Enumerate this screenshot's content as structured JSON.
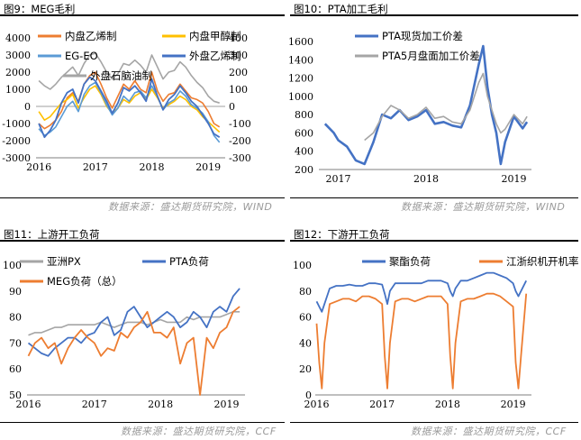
{
  "panels": [
    {
      "title": "图9：MEG毛利"
    },
    {
      "title": "图10：PTA加工毛利"
    },
    {
      "title": "图11：上游开工负荷"
    },
    {
      "title": "图12：下游开工负荷"
    }
  ],
  "source_top": "数据来源：盛达期货研究院，WIND",
  "source_bottom": "数据来源：盛达期货研究院，CCF",
  "chart_data": [
    {
      "type": "line",
      "ylim_left": [
        -3000,
        4000
      ],
      "ylim_right": [
        -300,
        400
      ],
      "yticks_left": [
        "4000",
        "3000",
        "2000",
        "1000",
        "0",
        "-1000",
        "-2000",
        "-3000"
      ],
      "yticks_right": [
        "400",
        "300",
        "200",
        "100",
        "0",
        "-100",
        "-200",
        "-300"
      ],
      "xticks": [
        "2016",
        "2017",
        "2018",
        "2019"
      ],
      "legend": [
        "内盘乙烯制",
        "内盘甲醇制",
        "EG-EO",
        "外盘乙烯制",
        "外盘石脑油制"
      ],
      "colors": {
        "内盘乙烯制": "#ed7d31",
        "内盘甲醇制": "#ffc000",
        "EG-EO": "#5b9bd5",
        "外盘乙烯制": "#4472c4",
        "外盘石脑油制": "#a5a5a5"
      },
      "x": [
        2016.0,
        2016.1,
        2016.2,
        2016.3,
        2016.4,
        2016.5,
        2016.6,
        2016.7,
        2016.8,
        2016.9,
        2017.0,
        2017.1,
        2017.2,
        2017.3,
        2017.4,
        2017.5,
        2017.6,
        2017.7,
        2017.8,
        2017.9,
        2018.0,
        2018.1,
        2018.2,
        2018.3,
        2018.4,
        2018.5,
        2018.6,
        2018.7,
        2018.8,
        2018.9,
        2019.0,
        2019.1,
        2019.2
      ],
      "series": [
        {
          "name": "内盘乙烯制",
          "axis": "left",
          "values": [
            -1000,
            -1300,
            -1100,
            -800,
            -300,
            500,
            800,
            300,
            1300,
            1800,
            2000,
            1300,
            500,
            -100,
            600,
            1300,
            1000,
            1500,
            1000,
            800,
            2000,
            900,
            300,
            700,
            800,
            1300,
            900,
            500,
            400,
            200,
            -300,
            -1000,
            -1200
          ]
        },
        {
          "name": "内盘甲醇制",
          "axis": "left",
          "values": [
            -300,
            -800,
            -600,
            -200,
            200,
            400,
            700,
            -100,
            500,
            1000,
            1200,
            700,
            0,
            -400,
            -100,
            400,
            200,
            600,
            800,
            400,
            1000,
            500,
            -100,
            100,
            300,
            600,
            400,
            0,
            -200,
            -600,
            -900,
            -1200,
            -1500
          ]
        },
        {
          "name": "EG-EO",
          "axis": "left",
          "values": [
            -1300,
            -1700,
            -1500,
            -1200,
            -600,
            0,
            300,
            -300,
            700,
            1200,
            1400,
            800,
            100,
            -500,
            -100,
            600,
            300,
            800,
            900,
            500,
            1200,
            600,
            -200,
            200,
            400,
            900,
            600,
            100,
            -100,
            -400,
            -900,
            -1700,
            -2100
          ]
        },
        {
          "name": "外盘乙烯制",
          "axis": "right",
          "values": [
            -100,
            -180,
            -140,
            -80,
            20,
            80,
            100,
            20,
            130,
            170,
            150,
            90,
            30,
            -40,
            20,
            110,
            90,
            120,
            80,
            30,
            160,
            60,
            -20,
            40,
            70,
            120,
            80,
            30,
            0,
            -50,
            -100,
            -160,
            -180
          ]
        },
        {
          "name": "外盘石脑油制",
          "axis": "right",
          "values": [
            150,
            120,
            100,
            130,
            170,
            200,
            230,
            180,
            250,
            300,
            310,
            260,
            200,
            160,
            190,
            250,
            240,
            270,
            240,
            200,
            300,
            230,
            160,
            200,
            210,
            260,
            230,
            180,
            140,
            110,
            60,
            30,
            20
          ]
        }
      ]
    },
    {
      "type": "line",
      "ylim": [
        200,
        1600
      ],
      "yticks": [
        "1600",
        "1400",
        "1200",
        "1000",
        "800",
        "600",
        "400",
        "200"
      ],
      "xticks": [
        "2017",
        "2018",
        "2019"
      ],
      "legend": [
        "PTA现货加工价差",
        "PTA5月盘面加工价差"
      ],
      "colors": {
        "PTA现货加工价差": "#4472c4",
        "PTA5月盘面加工价差": "#a5a5a5"
      },
      "x": [
        2016.85,
        2016.95,
        2017.0,
        2017.1,
        2017.2,
        2017.3,
        2017.4,
        2017.5,
        2017.6,
        2017.7,
        2017.8,
        2017.9,
        2018.0,
        2018.1,
        2018.2,
        2018.3,
        2018.4,
        2018.5,
        2018.6,
        2018.65,
        2018.7,
        2018.75,
        2018.8,
        2018.85,
        2018.9,
        2019.0,
        2019.1,
        2019.15
      ],
      "series": [
        {
          "name": "PTA现货加工价差",
          "values": [
            700,
            600,
            520,
            450,
            300,
            260,
            500,
            800,
            760,
            850,
            740,
            780,
            850,
            700,
            720,
            680,
            660,
            900,
            1350,
            1550,
            1100,
            800,
            600,
            260,
            500,
            780,
            650,
            720
          ]
        },
        {
          "name": "PTA5月盘面加工价差",
          "values": [
            null,
            null,
            null,
            null,
            null,
            520,
            600,
            780,
            900,
            850,
            760,
            800,
            880,
            760,
            780,
            720,
            700,
            850,
            1150,
            1250,
            1000,
            850,
            700,
            600,
            640,
            800,
            700,
            780
          ]
        }
      ]
    },
    {
      "type": "line",
      "ylim": [
        50,
        100
      ],
      "yticks": [
        "100",
        "90",
        "80",
        "70",
        "60",
        "50"
      ],
      "xticks": [
        "2016",
        "2017",
        "2018",
        "2019"
      ],
      "legend": [
        "亚洲PX",
        "PTA负荷",
        "MEG负荷（总）"
      ],
      "colors": {
        "亚洲PX": "#a5a5a5",
        "PTA负荷": "#4472c4",
        "MEG负荷（总）": "#ed7d31"
      },
      "x": [
        2016.0,
        2016.1,
        2016.2,
        2016.3,
        2016.4,
        2016.5,
        2016.6,
        2016.7,
        2016.8,
        2016.9,
        2017.0,
        2017.1,
        2017.2,
        2017.3,
        2017.4,
        2017.5,
        2017.6,
        2017.7,
        2017.8,
        2017.9,
        2018.0,
        2018.1,
        2018.2,
        2018.3,
        2018.4,
        2018.5,
        2018.6,
        2018.7,
        2018.8,
        2018.9,
        2019.0,
        2019.1,
        2019.2
      ],
      "series": [
        {
          "name": "亚洲PX",
          "values": [
            73,
            74,
            74,
            75,
            76,
            76,
            77,
            77,
            77,
            77,
            77,
            78,
            77,
            76,
            77,
            78,
            78,
            78,
            77,
            78,
            79,
            78,
            78,
            78,
            80,
            79,
            80,
            80,
            80,
            80,
            81,
            82,
            82
          ]
        },
        {
          "name": "PTA负荷",
          "values": [
            70,
            68,
            66,
            65,
            68,
            70,
            72,
            72,
            70,
            73,
            74,
            78,
            80,
            73,
            75,
            82,
            84,
            80,
            76,
            78,
            80,
            82,
            80,
            76,
            78,
            82,
            80,
            76,
            82,
            84,
            82,
            88,
            91
          ]
        },
        {
          "name": "MEG负荷（总）",
          "values": [
            65,
            70,
            72,
            68,
            70,
            62,
            68,
            72,
            75,
            72,
            70,
            65,
            68,
            67,
            74,
            72,
            76,
            78,
            82,
            74,
            74,
            72,
            76,
            62,
            70,
            72,
            50,
            72,
            68,
            74,
            76,
            82,
            84
          ]
        }
      ]
    },
    {
      "type": "line",
      "ylim": [
        0,
        100
      ],
      "yticks": [
        "100",
        "80",
        "60",
        "40",
        "20",
        "0"
      ],
      "xticks": [
        "2016",
        "2017",
        "2018",
        "2019"
      ],
      "legend": [
        "聚酯负荷",
        "江浙织机开机率"
      ],
      "colors": {
        "聚酯负荷": "#4472c4",
        "江浙织机开机率": "#ed7d31"
      },
      "x": [
        2016.0,
        2016.04,
        2016.08,
        2016.12,
        2016.2,
        2016.3,
        2016.4,
        2016.5,
        2016.6,
        2016.7,
        2016.8,
        2016.9,
        2017.0,
        2017.04,
        2017.08,
        2017.12,
        2017.2,
        2017.3,
        2017.4,
        2017.5,
        2017.6,
        2017.7,
        2017.8,
        2017.9,
        2018.0,
        2018.04,
        2018.08,
        2018.12,
        2018.2,
        2018.3,
        2018.4,
        2018.5,
        2018.6,
        2018.7,
        2018.8,
        2018.9,
        2019.0,
        2019.04,
        2019.08,
        2019.12,
        2019.2
      ],
      "series": [
        {
          "name": "聚酯负荷",
          "values": [
            72,
            68,
            64,
            70,
            82,
            84,
            84,
            85,
            84,
            84,
            86,
            86,
            85,
            78,
            70,
            80,
            86,
            86,
            86,
            86,
            86,
            88,
            88,
            88,
            86,
            80,
            76,
            82,
            88,
            88,
            90,
            92,
            94,
            94,
            92,
            90,
            86,
            80,
            76,
            80,
            88
          ]
        },
        {
          "name": "江浙织机开机率",
          "values": [
            55,
            25,
            5,
            40,
            70,
            72,
            74,
            74,
            72,
            76,
            76,
            74,
            70,
            30,
            5,
            40,
            72,
            74,
            74,
            72,
            74,
            76,
            76,
            76,
            70,
            30,
            5,
            40,
            72,
            74,
            74,
            76,
            78,
            78,
            76,
            72,
            68,
            25,
            5,
            30,
            78
          ]
        }
      ]
    }
  ]
}
